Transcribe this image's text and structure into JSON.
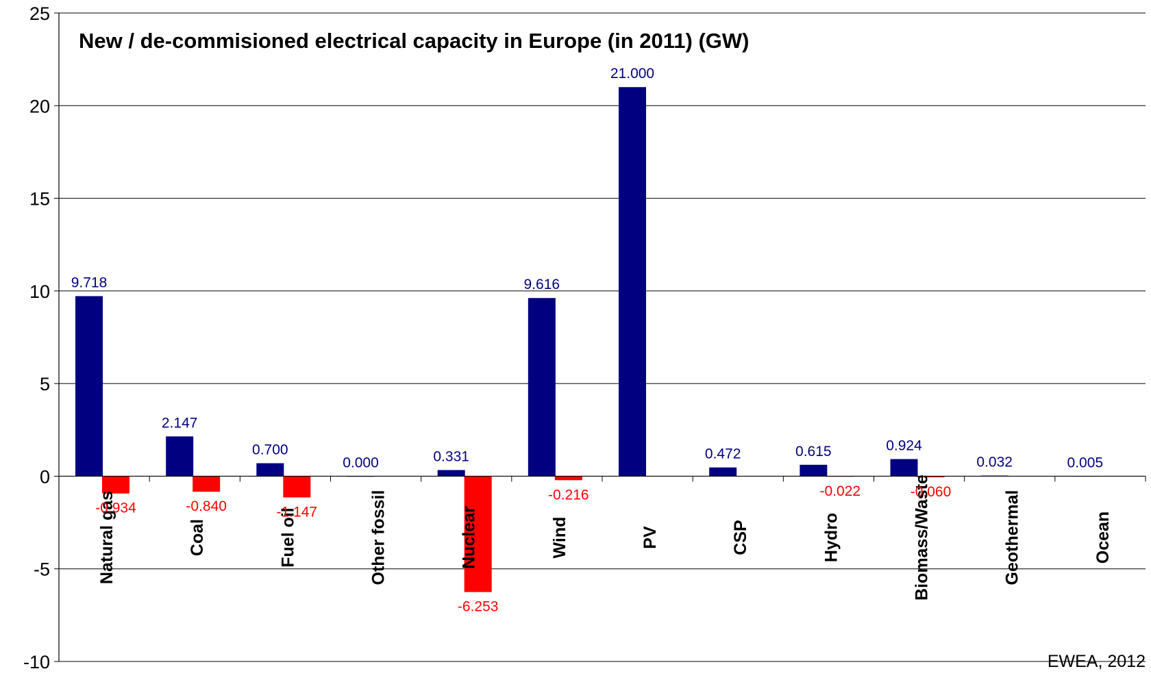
{
  "chart_data": {
    "type": "bar",
    "title": "New / de-commisioned electrical capacity in Europe (in 2011) (GW)",
    "source": "EWEA, 2012",
    "xlabel": "",
    "ylabel": "",
    "ylim": [
      -10,
      25
    ],
    "yticks": [
      "-10",
      "-5",
      "0",
      "5",
      "10",
      "15",
      "20",
      "25"
    ],
    "grid": true,
    "categories": [
      "Natural gas",
      "Coal",
      "Fuel oil",
      "Other fossil",
      "Nuclear",
      "Wind",
      "PV",
      "CSP",
      "Hydro",
      "Biomass/Waste",
      "Geothermal",
      "Ocean"
    ],
    "series": [
      {
        "color": "#000080",
        "values": [
          9.718,
          2.147,
          0.7,
          0.0,
          0.331,
          9.616,
          21.0,
          0.472,
          0.615,
          0.924,
          0.032,
          0.005
        ],
        "labels": [
          "9.718",
          "2.147",
          "0.700",
          "0.000",
          "0.331",
          "9.616",
          "21.000",
          "0.472",
          "0.615",
          "0.924",
          "0.032",
          "0.005"
        ]
      },
      {
        "color": "#ff0000",
        "values": [
          -0.934,
          -0.84,
          -1.147,
          null,
          -6.253,
          -0.216,
          null,
          null,
          -0.022,
          -0.06,
          null,
          null
        ],
        "labels": [
          "-0.934",
          "-0.840",
          "-1.147",
          "",
          "-6.253",
          "-0.216",
          "",
          "",
          "-0.022",
          "-0.060",
          "",
          ""
        ]
      }
    ]
  }
}
